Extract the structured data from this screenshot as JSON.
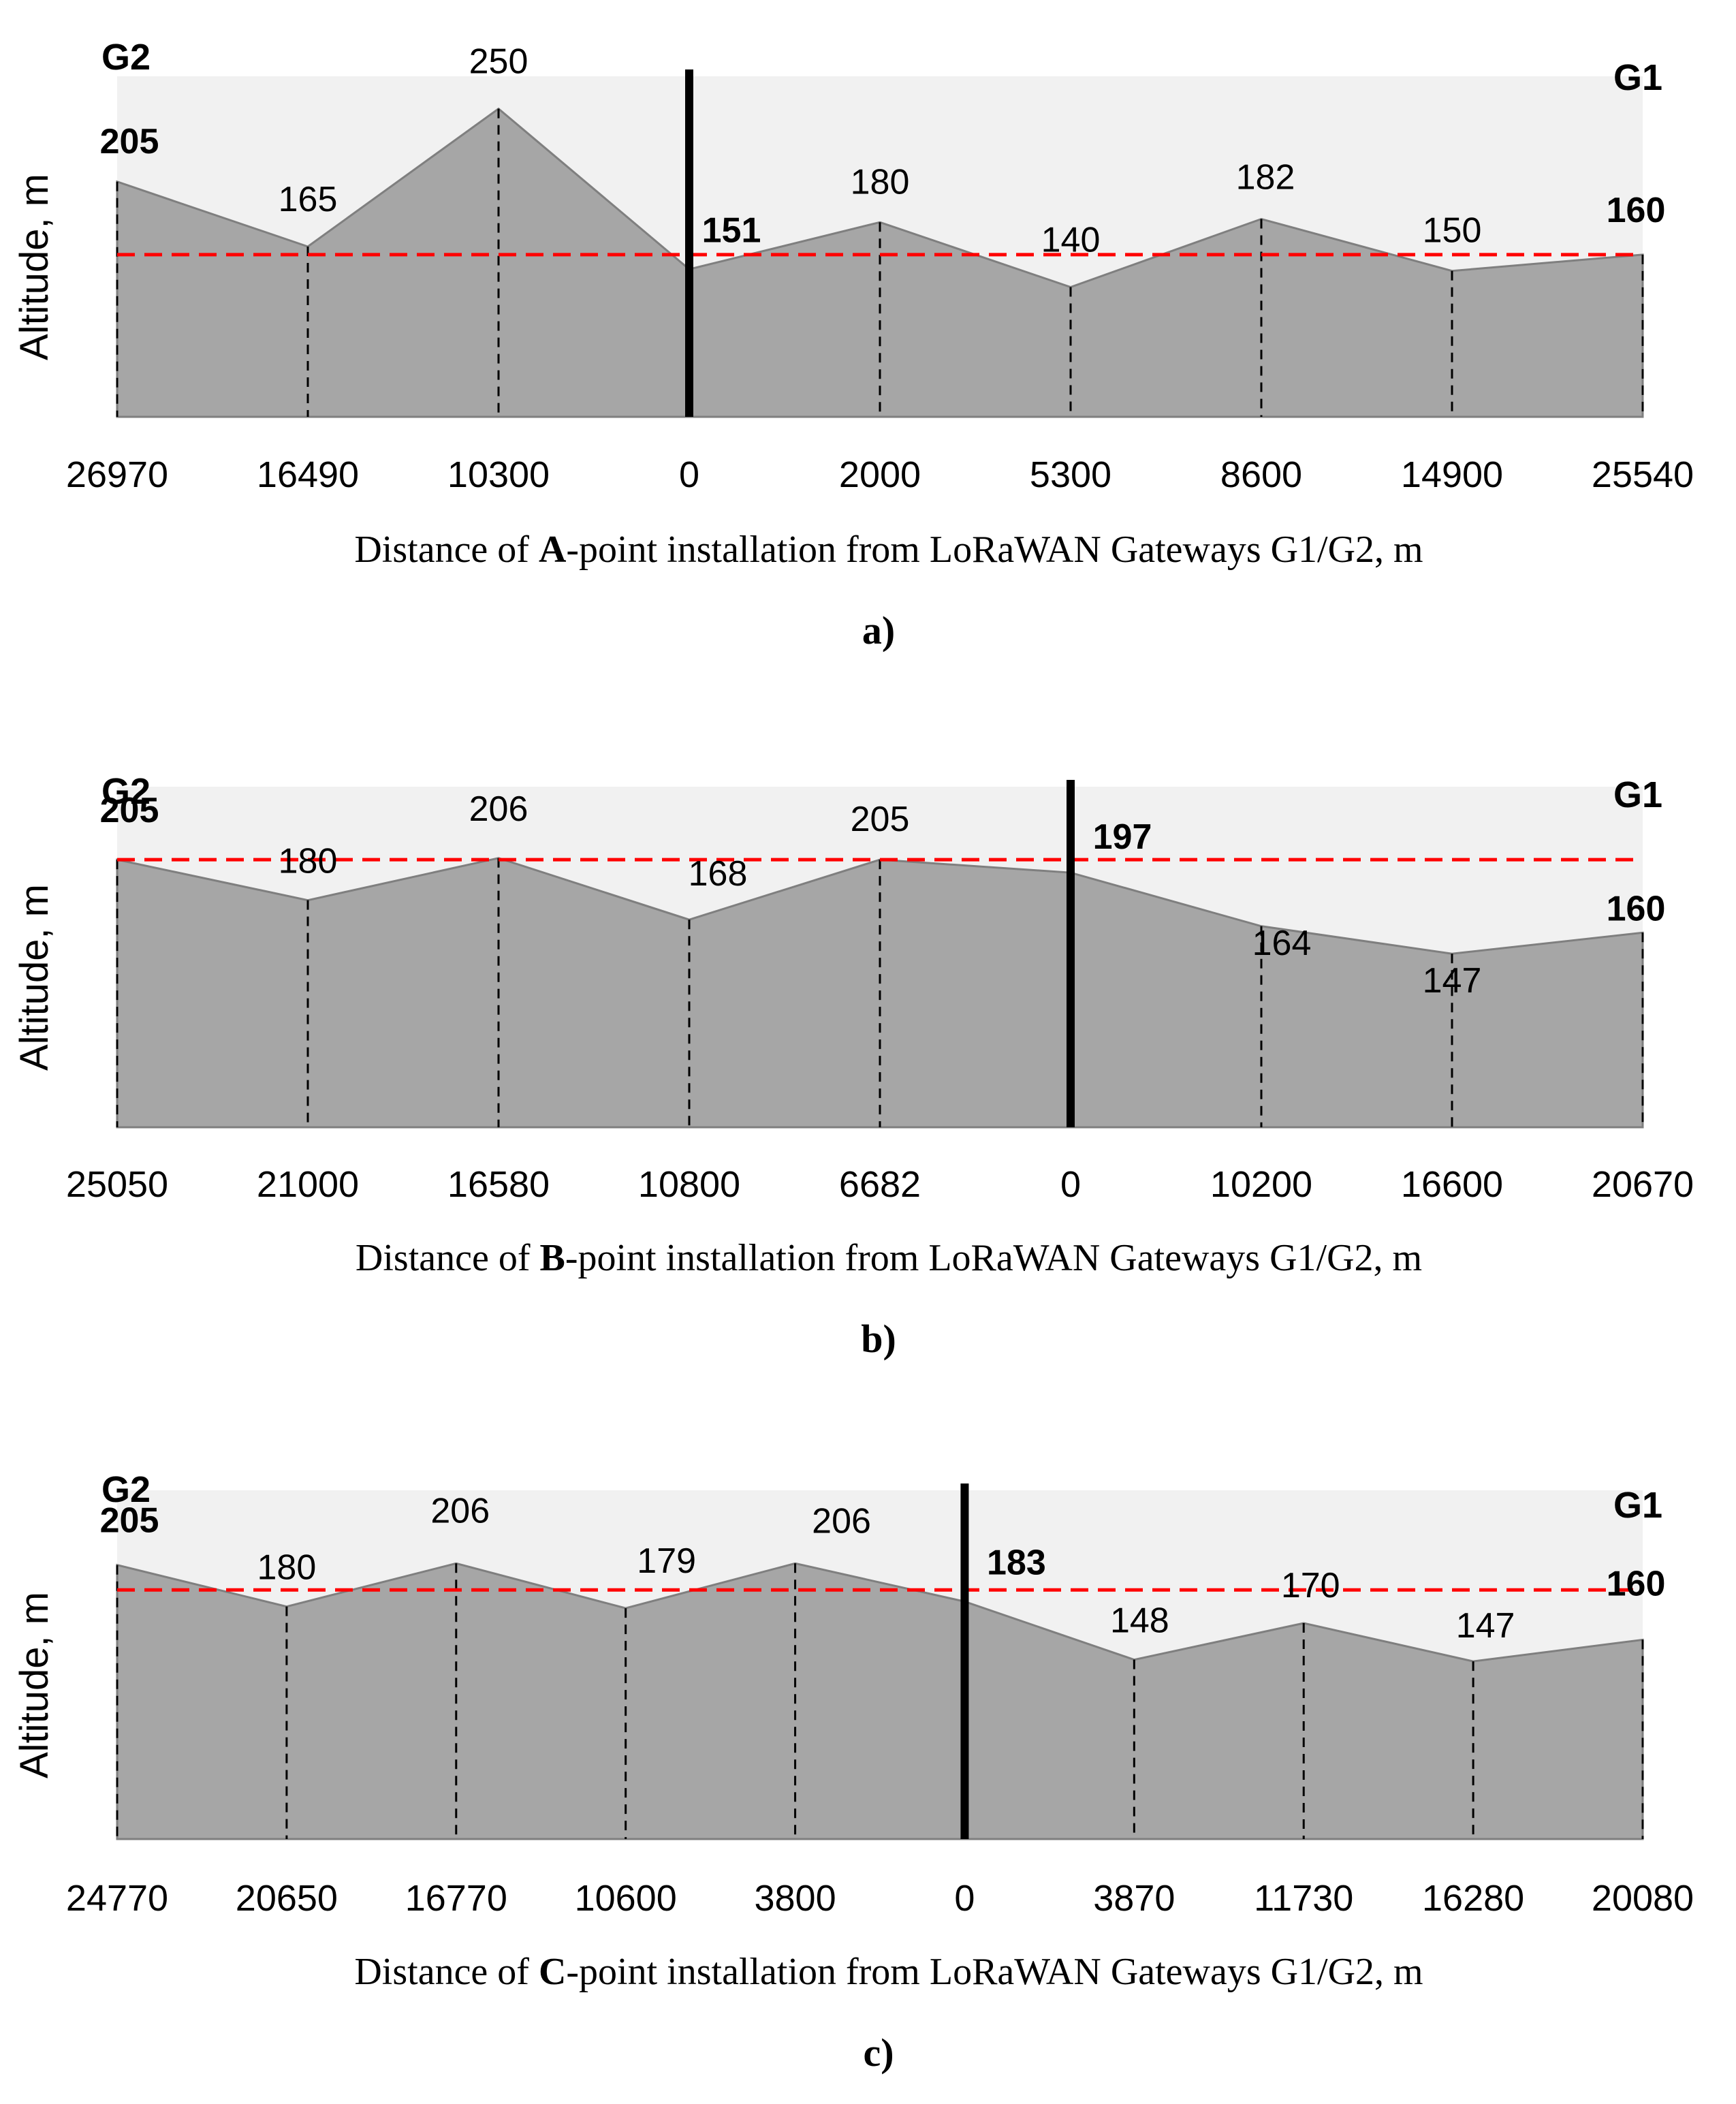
{
  "figure": {
    "ylabel": "Altitude, m"
  },
  "chart_data": [
    {
      "type": "area",
      "panel_label": "a)",
      "left_gateway": "G2",
      "right_gateway": "G1",
      "ylabel": "Altitude, m",
      "xlabel_parts": [
        "Distance of ",
        "A",
        "-point installation from LoRaWAN Gateways G1/G2, m"
      ],
      "distances": [
        "26970",
        "16490",
        "10300",
        "0",
        "2000",
        "5300",
        "8600",
        "14900",
        "25540"
      ],
      "altitudes": [
        205,
        165,
        250,
        151,
        180,
        140,
        182,
        150,
        160
      ],
      "altitude_labels": [
        "205",
        "165",
        "250",
        "151",
        "180",
        "140",
        "182",
        "150",
        "160"
      ],
      "bold_labels": [
        0,
        3,
        8
      ],
      "installation_index": 3,
      "reference_line_altitude": 160
    },
    {
      "type": "area",
      "panel_label": "b)",
      "left_gateway": "G2",
      "right_gateway": "G1",
      "ylabel": "Altitude, m",
      "xlabel_parts": [
        "Distance of ",
        "B",
        "-point installation from LoRaWAN Gateways G1/G2, m"
      ],
      "distances": [
        "25050",
        "21000",
        "16580",
        "10800",
        "6682",
        "0",
        "10200",
        "16600",
        "20670"
      ],
      "altitudes": [
        205,
        180,
        206,
        168,
        205,
        197,
        164,
        147,
        160
      ],
      "altitude_labels": [
        "205",
        "180",
        "206",
        "168",
        "205",
        "197",
        "164",
        "147",
        "160"
      ],
      "bold_labels": [
        0,
        5,
        8
      ],
      "installation_index": 5,
      "reference_line_altitude": 205
    },
    {
      "type": "area",
      "panel_label": "c)",
      "left_gateway": "G2",
      "right_gateway": "G1",
      "ylabel": "Altitude, m",
      "xlabel_parts": [
        "Distance of ",
        "C",
        "-point installation from LoRaWAN Gateways G1/G2, m"
      ],
      "distances": [
        "24770",
        "20650",
        "16770",
        "10600",
        "3800",
        "0",
        "3870",
        "11730",
        "16280",
        "20080"
      ],
      "altitudes": [
        205,
        180,
        206,
        179,
        206,
        183,
        148,
        170,
        147,
        160
      ],
      "altitude_labels": [
        "205",
        "180",
        "206",
        "179",
        "206",
        "183",
        "148",
        "170",
        "147",
        "160"
      ],
      "bold_labels": [
        0,
        5,
        9
      ],
      "installation_index": 5,
      "reference_line_altitude": 190
    }
  ]
}
